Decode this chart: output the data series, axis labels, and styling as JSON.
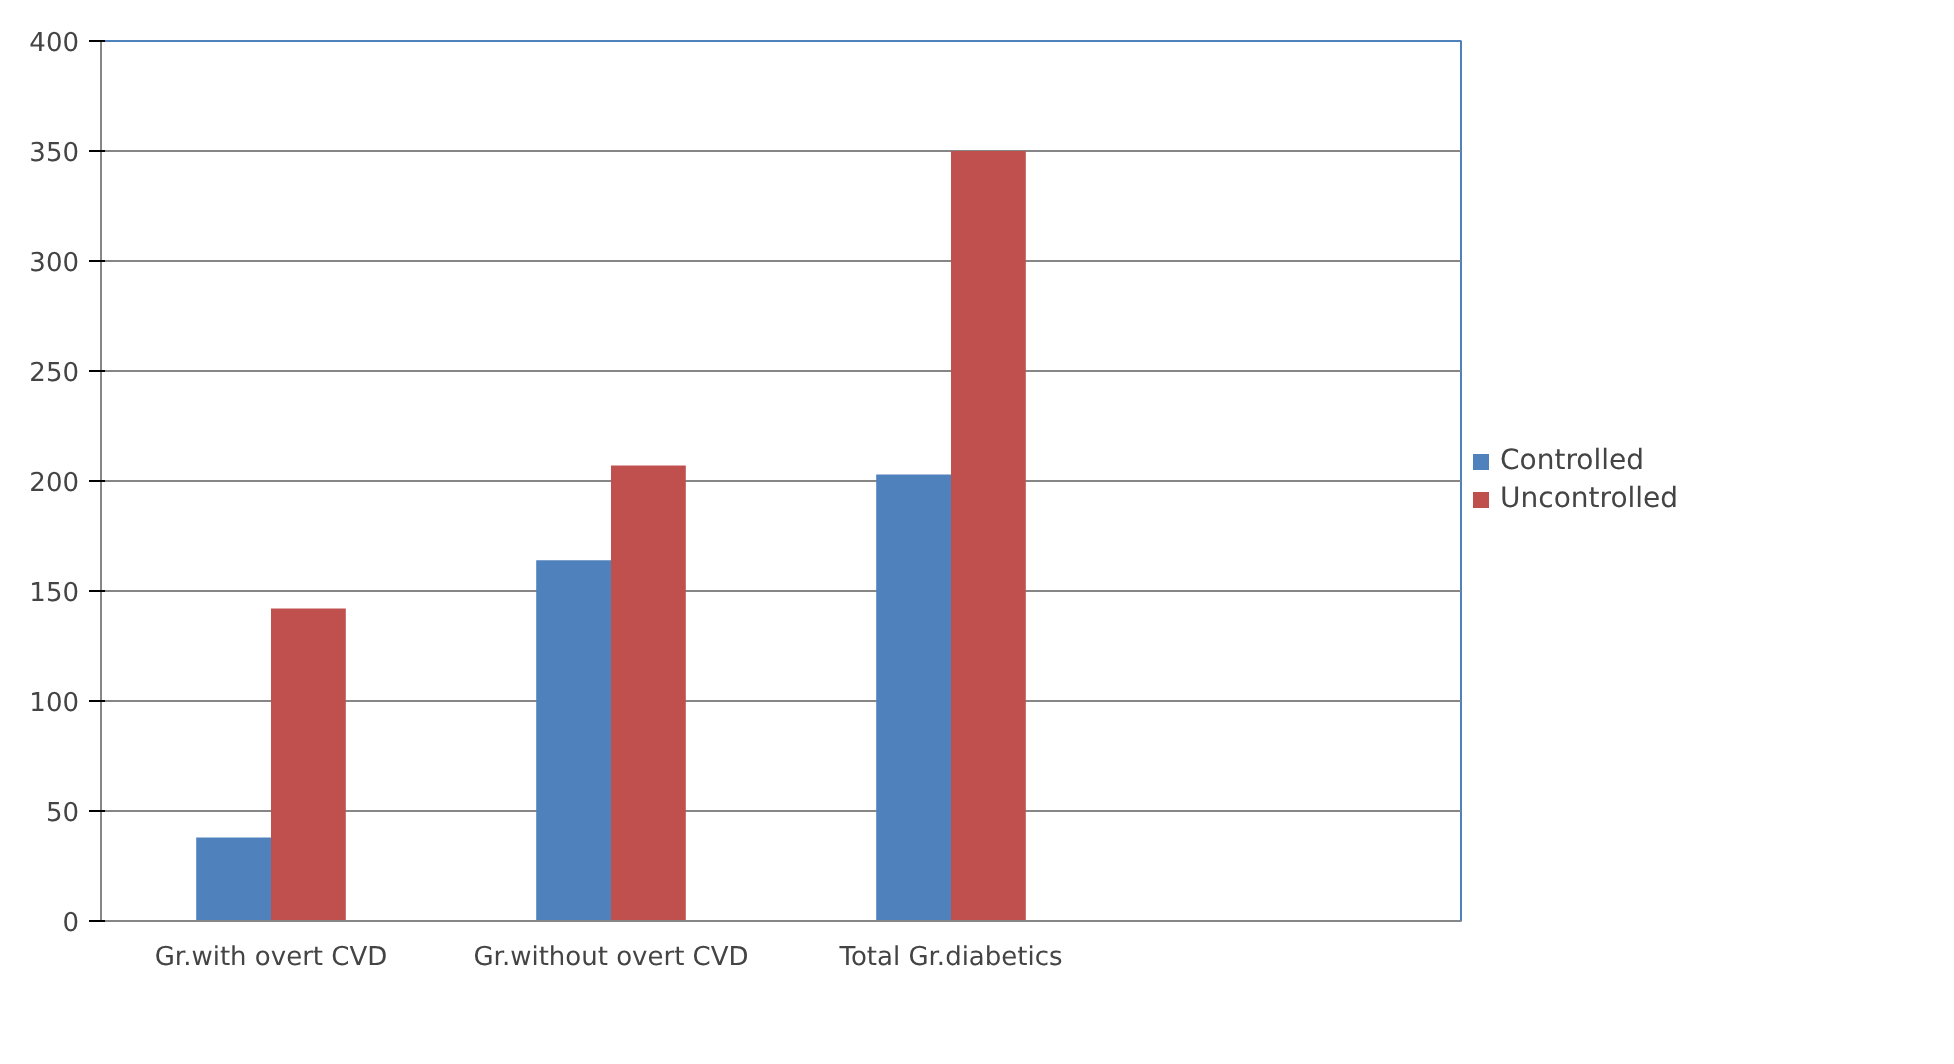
{
  "chart_data": {
    "type": "bar",
    "categories": [
      "Gr.with overt CVD",
      "Gr.without overt CVD",
      "Total Gr.diabetics",
      null
    ],
    "series": [
      {
        "name": "Controlled",
        "color": "#4f81bd",
        "values": [
          38,
          164,
          203,
          null
        ]
      },
      {
        "name": "Uncontrolled",
        "color": "#c0504d",
        "values": [
          142,
          207,
          350,
          null
        ]
      }
    ],
    "ylim": [
      0,
      400
    ],
    "yticks": [
      0,
      50,
      100,
      150,
      200,
      250,
      300,
      350,
      400
    ],
    "grid": "y",
    "legend": "right"
  }
}
